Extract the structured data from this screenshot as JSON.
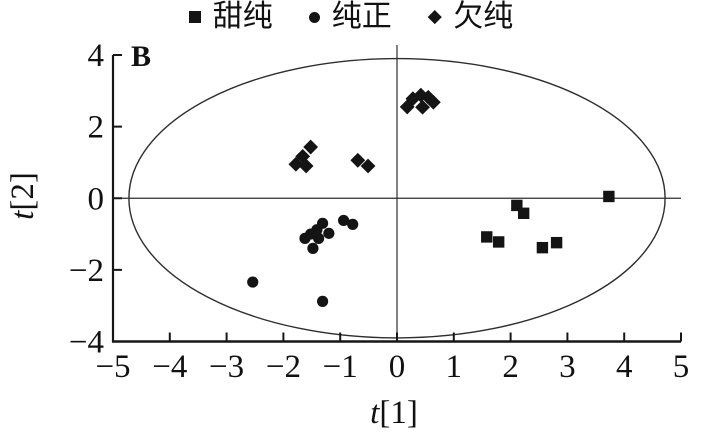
{
  "chart_data": {
    "type": "scatter",
    "title": "",
    "xlabel": "t[1]",
    "ylabel": "t[2]",
    "xlim": [
      -5,
      5
    ],
    "ylim": [
      -4,
      4
    ],
    "x_ticks": [
      -5,
      -4,
      -3,
      -2,
      -1,
      0,
      1,
      2,
      3,
      4,
      5
    ],
    "y_ticks": [
      -4,
      -2,
      0,
      2,
      4
    ],
    "grid": false,
    "legend_position": "top-center",
    "annotations": [
      {
        "text": "B",
        "x": -4.6,
        "y": 3.6
      }
    ],
    "ellipse": {
      "cx": 0,
      "cy": 0,
      "rx": 4.72,
      "ry": 3.9
    },
    "zero_lines": true,
    "marker_color": "#141414",
    "line_color": "#2e2e2e",
    "series": [
      {
        "name": "甜纯",
        "marker": "square",
        "points": [
          [
            3.73,
            0.05
          ],
          [
            2.11,
            -0.2
          ],
          [
            2.23,
            -0.42
          ],
          [
            1.58,
            -1.08
          ],
          [
            1.79,
            -1.22
          ],
          [
            2.56,
            -1.38
          ],
          [
            2.81,
            -1.24
          ]
        ]
      },
      {
        "name": "纯正",
        "marker": "circle",
        "points": [
          [
            -0.94,
            -0.62
          ],
          [
            -0.78,
            -0.73
          ],
          [
            -1.31,
            -0.7
          ],
          [
            -1.41,
            -0.88
          ],
          [
            -1.2,
            -0.98
          ],
          [
            -1.52,
            -1.0
          ],
          [
            -1.62,
            -1.12
          ],
          [
            -1.38,
            -1.12
          ],
          [
            -1.48,
            -1.4
          ],
          [
            -2.54,
            -2.34
          ],
          [
            -1.31,
            -2.88
          ]
        ]
      },
      {
        "name": "欠纯",
        "marker": "diamond",
        "points": [
          [
            0.18,
            2.55
          ],
          [
            0.28,
            2.78
          ],
          [
            0.42,
            2.88
          ],
          [
            0.55,
            2.82
          ],
          [
            0.64,
            2.68
          ],
          [
            0.45,
            2.54
          ],
          [
            -1.52,
            1.43
          ],
          [
            -1.66,
            1.17
          ],
          [
            -1.78,
            0.95
          ],
          [
            -1.6,
            0.9
          ],
          [
            -0.69,
            1.06
          ],
          [
            -0.51,
            0.9
          ]
        ]
      }
    ]
  }
}
